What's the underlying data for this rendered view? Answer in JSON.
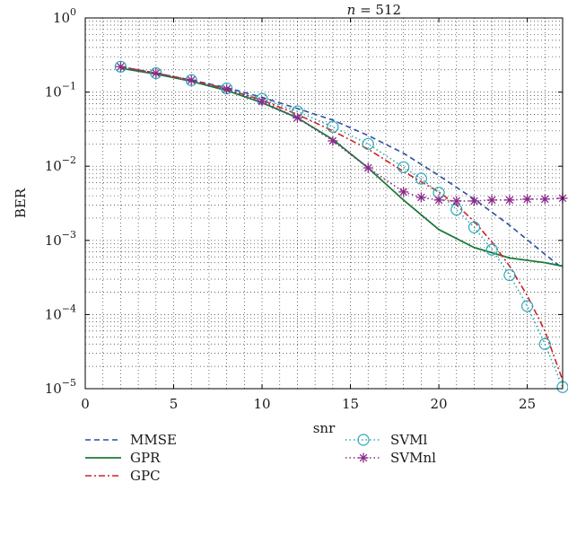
{
  "chart_data": {
    "type": "line",
    "title": "n = 512",
    "title_var": "n",
    "title_rest": " = 512",
    "xlabel": "snr",
    "ylabel": "BER",
    "xlim": [
      0,
      27
    ],
    "ylim": [
      1e-05,
      1
    ],
    "yscale": "log",
    "grid": true,
    "legend_position": "bottom",
    "x_ticks": [
      0,
      5,
      10,
      15,
      20,
      25
    ],
    "x_tick_labels": [
      "0",
      "5",
      "10",
      "15",
      "20",
      "25"
    ],
    "y_ticks": [
      1e-05,
      0.0001,
      0.001,
      0.01,
      0.1,
      1
    ],
    "y_tick_labels": [
      {
        "base": "10",
        "exp": "−5"
      },
      {
        "base": "10",
        "exp": "−4"
      },
      {
        "base": "10",
        "exp": "−3"
      },
      {
        "base": "10",
        "exp": "−2"
      },
      {
        "base": "10",
        "exp": "−1"
      },
      {
        "base": "10",
        "exp": "0"
      }
    ],
    "series": [
      {
        "name": "MMSE",
        "color": "#2b4fa0",
        "style": "dashed",
        "marker": "none",
        "x": [
          2,
          4,
          6,
          8,
          10,
          12,
          14,
          16,
          18,
          20,
          22,
          24,
          26,
          27
        ],
        "y": [
          0.22,
          0.18,
          0.145,
          0.115,
          0.085,
          0.06,
          0.042,
          0.026,
          0.015,
          0.0075,
          0.0036,
          0.0016,
          0.00065,
          0.00042
        ]
      },
      {
        "name": "GPR",
        "color": "#1e7a3c",
        "style": "solid",
        "marker": "none",
        "x": [
          2,
          4,
          6,
          8,
          10,
          12,
          14,
          16,
          18,
          20,
          22,
          24,
          26,
          27
        ],
        "y": [
          0.21,
          0.175,
          0.14,
          0.105,
          0.072,
          0.045,
          0.023,
          0.0095,
          0.0035,
          0.0014,
          0.0008,
          0.00058,
          0.0005,
          0.00045
        ]
      },
      {
        "name": "GPC",
        "color": "#d42020",
        "style": "dashdot",
        "marker": "none",
        "x": [
          2,
          4,
          6,
          8,
          10,
          12,
          14,
          16,
          18,
          20,
          21,
          22,
          23,
          24,
          25,
          26,
          27
        ],
        "y": [
          0.22,
          0.18,
          0.145,
          0.11,
          0.078,
          0.05,
          0.03,
          0.017,
          0.0085,
          0.0045,
          0.003,
          0.0018,
          0.00095,
          0.00045,
          0.00018,
          6e-05,
          1.3e-05
        ]
      },
      {
        "name": "SVMl",
        "color": "#2aa8b8",
        "style": "dotted",
        "marker": "circle",
        "x": [
          2,
          4,
          6,
          8,
          10,
          12,
          14,
          16,
          18,
          19,
          20,
          21,
          22,
          23,
          24,
          25,
          26,
          27
        ],
        "y": [
          0.22,
          0.18,
          0.145,
          0.112,
          0.081,
          0.055,
          0.034,
          0.02,
          0.0097,
          0.0068,
          0.0044,
          0.0026,
          0.0015,
          0.00075,
          0.00034,
          0.00013,
          4e-05,
          1.05e-05
        ]
      },
      {
        "name": "SVMnl",
        "color": "#8a2a8a",
        "style": "dotted",
        "marker": "star",
        "x": [
          2,
          4,
          6,
          8,
          10,
          12,
          14,
          16,
          18,
          19,
          20,
          21,
          22,
          23,
          24,
          25,
          26,
          27
        ],
        "y": [
          0.22,
          0.18,
          0.145,
          0.11,
          0.075,
          0.045,
          0.022,
          0.0095,
          0.0045,
          0.0038,
          0.0035,
          0.0034,
          0.0034,
          0.0035,
          0.0035,
          0.0036,
          0.0036,
          0.0037
        ]
      }
    ]
  }
}
